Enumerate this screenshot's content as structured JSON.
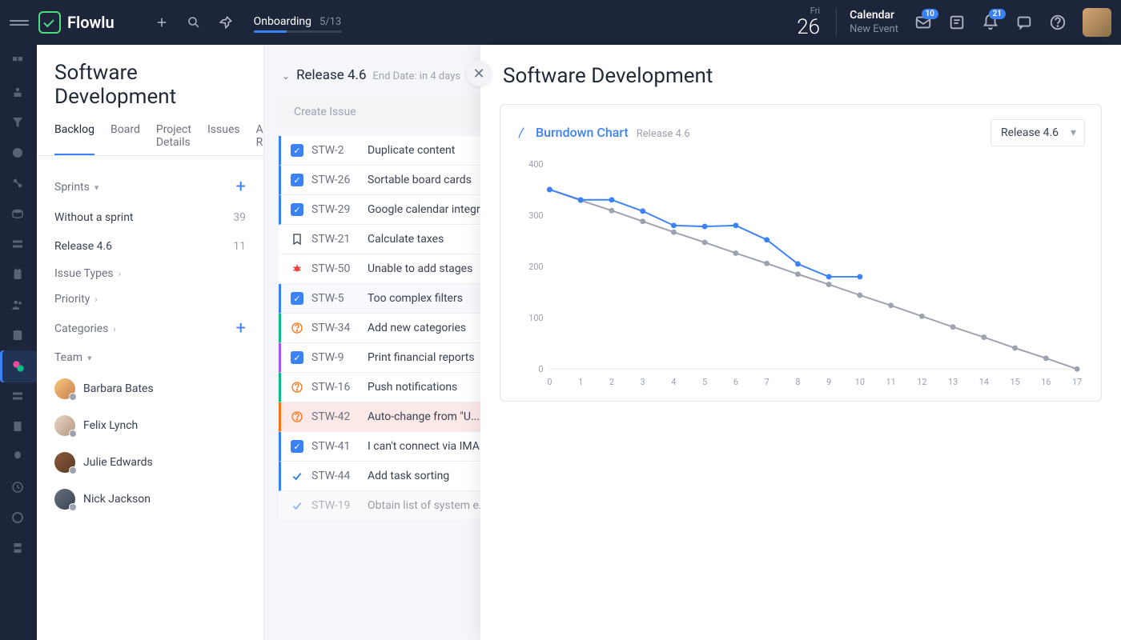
{
  "header": {
    "brand": "Flowlu",
    "onboarding_label": "Onboarding",
    "onboarding_count": "5/13",
    "onboarding_progress_pct": 38,
    "date_day": "Fri",
    "date_num": "26",
    "calendar_title": "Calendar",
    "calendar_sub": "New Event",
    "inbox_badge": "10",
    "bell_badge": "21"
  },
  "project": {
    "title": "Software Development",
    "tabs": [
      "Backlog",
      "Board",
      "Project Details",
      "Issues",
      "Automation Rules"
    ],
    "active_tab": 0,
    "sprints_label": "Sprints",
    "without_sprint_label": "Without a sprint",
    "without_sprint_count": "39",
    "release_label": "Release 4.6",
    "release_count": "11",
    "issue_types_label": "Issue Types",
    "priority_label": "Priority",
    "categories_label": "Categories",
    "team_label": "Team",
    "team": [
      {
        "name": "Barbara Bates",
        "color": "linear-gradient(135deg,#f9c97c,#c77d4f)"
      },
      {
        "name": "Felix Lynch",
        "color": "linear-gradient(135deg,#e8d5c4,#b59882)"
      },
      {
        "name": "Julie Edwards",
        "color": "linear-gradient(135deg,#8b5a3c,#5c3a26)"
      },
      {
        "name": "Nick Jackson",
        "color": "linear-gradient(135deg,#6b7280,#374151)"
      }
    ]
  },
  "release": {
    "name": "Release 4.6",
    "end_text": "End Date: in 4 days",
    "create_issue": "Create Issue"
  },
  "issues": [
    {
      "id": "STW-2",
      "title": "Duplicate content",
      "icon": "check",
      "icon_bg": "#3b82f6",
      "bar": "#3b82f6",
      "row_bg": "#ffffff"
    },
    {
      "id": "STW-26",
      "title": "Sortable board cards",
      "icon": "check",
      "icon_bg": "#3b82f6",
      "bar": "#3b82f6",
      "row_bg": "#ffffff"
    },
    {
      "id": "STW-29",
      "title": "Google calendar integration",
      "icon": "check",
      "icon_bg": "#3b82f6",
      "bar": "#3b82f6",
      "row_bg": "#ffffff"
    },
    {
      "id": "STW-21",
      "title": "Calculate taxes",
      "icon": "bookmark",
      "icon_bg": "transparent",
      "bar": "transparent",
      "row_bg": "#ffffff"
    },
    {
      "id": "STW-50",
      "title": "Unable to add stages",
      "icon": "bug",
      "icon_bg": "transparent",
      "bar": "transparent",
      "row_bg": "#ffffff"
    },
    {
      "id": "STW-5",
      "title": "Too complex filters",
      "icon": "check",
      "icon_bg": "#3b82f6",
      "bar": "#3b82f6",
      "row_bg": "#f7f9fc"
    },
    {
      "id": "STW-34",
      "title": "Add new categories",
      "icon": "question",
      "icon_bg": "transparent",
      "bar": "#10b981",
      "row_bg": "#ffffff"
    },
    {
      "id": "STW-9",
      "title": "Print financial reports",
      "icon": "check",
      "icon_bg": "#3b82f6",
      "bar": "#a855f7",
      "row_bg": "#ffffff"
    },
    {
      "id": "STW-16",
      "title": "Push notifications",
      "icon": "question",
      "icon_bg": "transparent",
      "bar": "#10b981",
      "row_bg": "#ffffff"
    },
    {
      "id": "STW-42",
      "title": "Auto-change from \"U...",
      "icon": "question",
      "icon_bg": "transparent",
      "bar": "#f97316",
      "row_bg": "#fde8e8"
    },
    {
      "id": "STW-41",
      "title": "I can't connect via IMAP",
      "icon": "check",
      "icon_bg": "#3b82f6",
      "bar": "#3b82f6",
      "row_bg": "#ffffff"
    },
    {
      "id": "STW-44",
      "title": "Add task sorting",
      "icon": "done",
      "icon_bg": "transparent",
      "bar": "#3b82f6",
      "row_bg": "#ffffff"
    },
    {
      "id": "STW-19",
      "title": "Obtain list of system e...",
      "icon": "done",
      "icon_bg": "transparent",
      "bar": "transparent",
      "row_bg": "#ffffff",
      "faded": true
    }
  ],
  "panel": {
    "title": "Software Development",
    "chart_name": "Burndown Chart",
    "chart_sub": "Release 4.6",
    "select_value": "Release 4.6"
  },
  "chart": {
    "type": "line",
    "x_ticks": [
      0,
      1,
      2,
      3,
      4,
      5,
      6,
      7,
      8,
      9,
      10,
      11,
      12,
      13,
      14,
      15,
      16,
      17
    ],
    "y_ticks": [
      0,
      100,
      200,
      300,
      400
    ],
    "ylim": [
      0,
      400
    ],
    "xlim": [
      0,
      17
    ],
    "ideal": [
      350,
      329,
      309,
      288,
      267,
      247,
      226,
      206,
      185,
      165,
      144,
      124,
      103,
      82,
      62,
      41,
      21,
      0
    ],
    "actual": [
      350,
      330,
      330,
      308,
      280,
      278,
      280,
      252,
      205,
      180,
      180
    ],
    "ideal_color": "#9ca3af",
    "actual_color": "#3b82f6",
    "line_width": 2,
    "marker_r": 3.5,
    "background_color": "#ffffff",
    "axis_font_size": 11,
    "axis_color": "#9ca3af"
  }
}
